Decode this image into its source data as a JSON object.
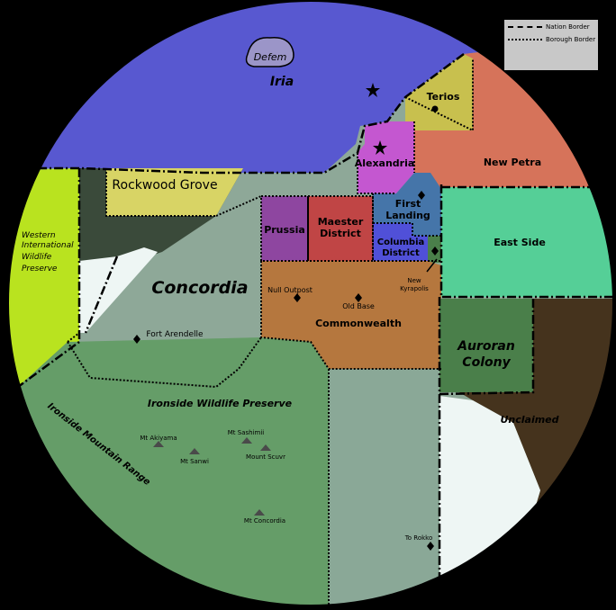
{
  "legend": {
    "nation_border": "Nation Border",
    "borough_border": "Borough Border"
  },
  "regions": {
    "iria": "Iria",
    "defem": "Defem",
    "terios": "Terios",
    "alexandria": "Alexandria",
    "new_petra": "New Petra",
    "rockwood_grove": "Rockwood Grove",
    "western_preserve": [
      "Western",
      "International",
      "Wildlife",
      "Preserve"
    ],
    "prussia": "Prussia",
    "maester": [
      "Maester",
      "District"
    ],
    "first_landing": [
      "First",
      "Landing"
    ],
    "columbia": [
      "Columbia",
      "District"
    ],
    "east_side": "East Side",
    "concordia": "Concordia",
    "commonwealth": "Commonwealth",
    "auroran": [
      "Auroran",
      "Colony"
    ],
    "unclaimed": "Unclaimed",
    "ironside_preserve": "Ironside Wildlife Preserve",
    "ironside_range": "Ironside Mountain Range"
  },
  "places": {
    "null_outpost": "Null Outpost",
    "old_base": "Old Base",
    "new_kyrapolis": [
      "New",
      "Kyrapolis"
    ],
    "fort_arendelle": "Fort Arendelle",
    "to_rokko": "To Rokko"
  },
  "mountains": {
    "akiyama": "Mt Akiyama",
    "sanwi": "Mt Sanwi",
    "sashimii": "Mt Sashimii",
    "scuvr": "Mount Scuvr",
    "concordia": "Mt Concordia"
  },
  "colors": {
    "background": "#000000",
    "iria": "#5858d0",
    "defem": "#9b95c8",
    "terios": "#c8c04e",
    "alexandria": "#c457d0",
    "new_petra": "#d6735a",
    "rockwood_grove": "#d8d465",
    "western_preserve": "#b9e31f",
    "prussia": "#8e46a0",
    "maester": "#c04545",
    "first_landing": "#4575a9",
    "columbia": "#5050d8",
    "east_side": "#55cf97",
    "concordia": "#8ea898",
    "commonwealth": "#b5773e",
    "auroran": "#4a7f4a",
    "unclaimed": "#45331d",
    "ironside": "#659d68",
    "south_strip": "#8aa897",
    "snow": "#eef6f4",
    "forest_dark": "#3a4a3a"
  }
}
